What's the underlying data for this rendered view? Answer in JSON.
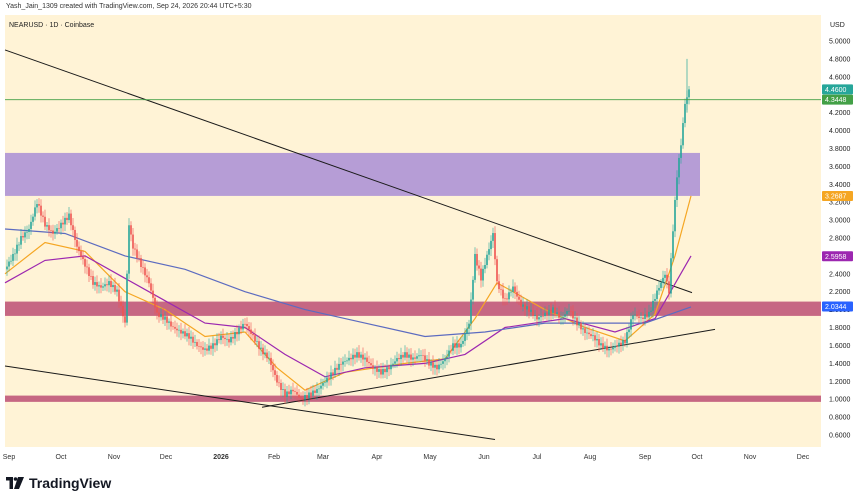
{
  "caption": "Yash_Jain_1309 created with TradingView.com, Sep 24, 2026 20:44 UTC+5:30",
  "brand": "TradingView",
  "chart_data": {
    "type": "candlestick",
    "symbol_label": "NEARUSD · 1D · Coinbase",
    "currency": "USD",
    "y_axis": {
      "range": [
        0.5,
        5.1
      ],
      "ticks": [
        "5.0000",
        "4.8000",
        "4.6000",
        "4.2000",
        "4.0000",
        "3.8000",
        "3.6000",
        "3.4000",
        "3.2000",
        "3.0000",
        "2.8000",
        "2.6000",
        "2.4000",
        "2.2000",
        "2.0000",
        "1.8000",
        "1.6000",
        "1.4000",
        "1.2000",
        "1.0000",
        "0.8000",
        "0.6000"
      ]
    },
    "x_axis": {
      "ticks": [
        {
          "label": "Sep",
          "bold": false
        },
        {
          "label": "Oct",
          "bold": false
        },
        {
          "label": "Nov",
          "bold": false
        },
        {
          "label": "Dec",
          "bold": false
        },
        {
          "label": "2026",
          "bold": true
        },
        {
          "label": "Feb",
          "bold": false
        },
        {
          "label": "Mar",
          "bold": false
        },
        {
          "label": "Apr",
          "bold": false
        },
        {
          "label": "May",
          "bold": false
        },
        {
          "label": "Jun",
          "bold": false
        },
        {
          "label": "Jul",
          "bold": false
        },
        {
          "label": "Aug",
          "bold": false
        },
        {
          "label": "Sep",
          "bold": false
        },
        {
          "label": "Oct",
          "bold": false
        },
        {
          "label": "Nov",
          "bold": false
        },
        {
          "label": "Dec",
          "bold": false
        }
      ]
    },
    "price_markers": [
      {
        "label": "4.4600",
        "value": 4.46,
        "color": "#26a69a"
      },
      {
        "label": "4.3448",
        "value": 4.3448,
        "color": "#43a047"
      },
      {
        "label": "3.2687",
        "value": 3.2687,
        "color": "#f5a623"
      },
      {
        "label": "2.5958",
        "value": 2.5958,
        "color": "#9c27b0"
      },
      {
        "label": "2.0344",
        "value": 2.0344,
        "color": "#2962ff"
      }
    ],
    "horizontal_line": {
      "value": 4.3448,
      "color": "#43a047"
    },
    "zones": [
      {
        "low": 3.27,
        "high": 3.75,
        "color": "#a98dd6"
      },
      {
        "low": 1.93,
        "high": 2.09,
        "color": "#c0587a"
      },
      {
        "low": 0.97,
        "high": 1.04,
        "color": "#c0587a"
      }
    ],
    "close_path": [
      [
        0,
        2.45
      ],
      [
        8,
        2.6
      ],
      [
        16,
        2.8
      ],
      [
        24,
        2.9
      ],
      [
        32,
        3.2
      ],
      [
        40,
        2.95
      ],
      [
        48,
        2.85
      ],
      [
        56,
        2.95
      ],
      [
        64,
        3.05
      ],
      [
        72,
        2.7
      ],
      [
        80,
        2.5
      ],
      [
        88,
        2.3
      ],
      [
        96,
        2.25
      ],
      [
        104,
        2.3
      ],
      [
        112,
        2.2
      ],
      [
        120,
        1.85
      ],
      [
        124,
        2.95
      ],
      [
        128,
        2.7
      ],
      [
        136,
        2.5
      ],
      [
        144,
        2.3
      ],
      [
        152,
        1.95
      ],
      [
        160,
        1.9
      ],
      [
        168,
        1.8
      ],
      [
        176,
        1.75
      ],
      [
        184,
        1.7
      ],
      [
        192,
        1.6
      ],
      [
        200,
        1.55
      ],
      [
        208,
        1.6
      ],
      [
        216,
        1.7
      ],
      [
        224,
        1.65
      ],
      [
        232,
        1.75
      ],
      [
        240,
        1.85
      ],
      [
        248,
        1.7
      ],
      [
        256,
        1.55
      ],
      [
        264,
        1.45
      ],
      [
        272,
        1.2
      ],
      [
        280,
        1.05
      ],
      [
        288,
        1.1
      ],
      [
        296,
        1.0
      ],
      [
        304,
        1.05
      ],
      [
        312,
        1.1
      ],
      [
        320,
        1.2
      ],
      [
        328,
        1.3
      ],
      [
        336,
        1.4
      ],
      [
        344,
        1.45
      ],
      [
        352,
        1.5
      ],
      [
        360,
        1.45
      ],
      [
        368,
        1.35
      ],
      [
        376,
        1.3
      ],
      [
        384,
        1.35
      ],
      [
        392,
        1.45
      ],
      [
        400,
        1.5
      ],
      [
        408,
        1.45
      ],
      [
        416,
        1.5
      ],
      [
        424,
        1.4
      ],
      [
        432,
        1.35
      ],
      [
        440,
        1.45
      ],
      [
        448,
        1.6
      ],
      [
        456,
        1.6
      ],
      [
        464,
        1.85
      ],
      [
        470,
        2.6
      ],
      [
        476,
        2.35
      ],
      [
        482,
        2.6
      ],
      [
        488,
        2.85
      ],
      [
        492,
        2.3
      ],
      [
        500,
        2.1
      ],
      [
        508,
        2.25
      ],
      [
        516,
        2.05
      ],
      [
        524,
        2.0
      ],
      [
        532,
        1.9
      ],
      [
        540,
        1.95
      ],
      [
        548,
        2.0
      ],
      [
        556,
        1.9
      ],
      [
        564,
        2.0
      ],
      [
        572,
        1.85
      ],
      [
        580,
        1.75
      ],
      [
        588,
        1.7
      ],
      [
        596,
        1.6
      ],
      [
        604,
        1.55
      ],
      [
        612,
        1.6
      ],
      [
        620,
        1.65
      ],
      [
        628,
        1.95
      ],
      [
        636,
        1.9
      ],
      [
        644,
        1.95
      ],
      [
        652,
        2.2
      ],
      [
        660,
        2.4
      ],
      [
        664,
        2.2
      ],
      [
        668,
        2.9
      ],
      [
        672,
        3.5
      ],
      [
        676,
        3.85
      ],
      [
        680,
        4.3
      ],
      [
        684,
        4.45
      ]
    ],
    "moving_averages": [
      {
        "name": "ema_short",
        "color": "#f5a623",
        "points": [
          [
            0,
            2.4
          ],
          [
            40,
            2.75
          ],
          [
            80,
            2.65
          ],
          [
            120,
            2.2
          ],
          [
            160,
            2.0
          ],
          [
            200,
            1.7
          ],
          [
            240,
            1.75
          ],
          [
            272,
            1.35
          ],
          [
            300,
            1.1
          ],
          [
            340,
            1.3
          ],
          [
            400,
            1.4
          ],
          [
            440,
            1.45
          ],
          [
            470,
            1.9
          ],
          [
            492,
            2.3
          ],
          [
            540,
            2.0
          ],
          [
            580,
            1.8
          ],
          [
            620,
            1.65
          ],
          [
            650,
            1.95
          ],
          [
            670,
            2.6
          ],
          [
            686,
            3.27
          ]
        ]
      },
      {
        "name": "ema_mid",
        "color": "#9c27b0",
        "points": [
          [
            0,
            2.3
          ],
          [
            40,
            2.55
          ],
          [
            80,
            2.6
          ],
          [
            120,
            2.35
          ],
          [
            160,
            2.1
          ],
          [
            200,
            1.85
          ],
          [
            240,
            1.8
          ],
          [
            280,
            1.5
          ],
          [
            320,
            1.25
          ],
          [
            360,
            1.35
          ],
          [
            420,
            1.4
          ],
          [
            460,
            1.5
          ],
          [
            500,
            1.8
          ],
          [
            560,
            1.9
          ],
          [
            610,
            1.75
          ],
          [
            650,
            1.9
          ],
          [
            686,
            2.6
          ]
        ]
      },
      {
        "name": "ema_long",
        "color": "#5c6bc0",
        "points": [
          [
            0,
            2.9
          ],
          [
            60,
            2.85
          ],
          [
            120,
            2.6
          ],
          [
            180,
            2.45
          ],
          [
            240,
            2.2
          ],
          [
            300,
            2.0
          ],
          [
            360,
            1.85
          ],
          [
            420,
            1.7
          ],
          [
            480,
            1.75
          ],
          [
            540,
            1.85
          ],
          [
            600,
            1.85
          ],
          [
            640,
            1.85
          ],
          [
            686,
            2.03
          ]
        ]
      }
    ],
    "trendlines": [
      {
        "from": [
          5,
          4.9
        ],
        "to": [
          692,
          2.19
        ]
      },
      {
        "from": [
          262,
          0.91
        ],
        "to": [
          715,
          1.78
        ]
      },
      {
        "from": [
          5,
          1.37
        ],
        "to": [
          495,
          0.55
        ]
      }
    ]
  }
}
